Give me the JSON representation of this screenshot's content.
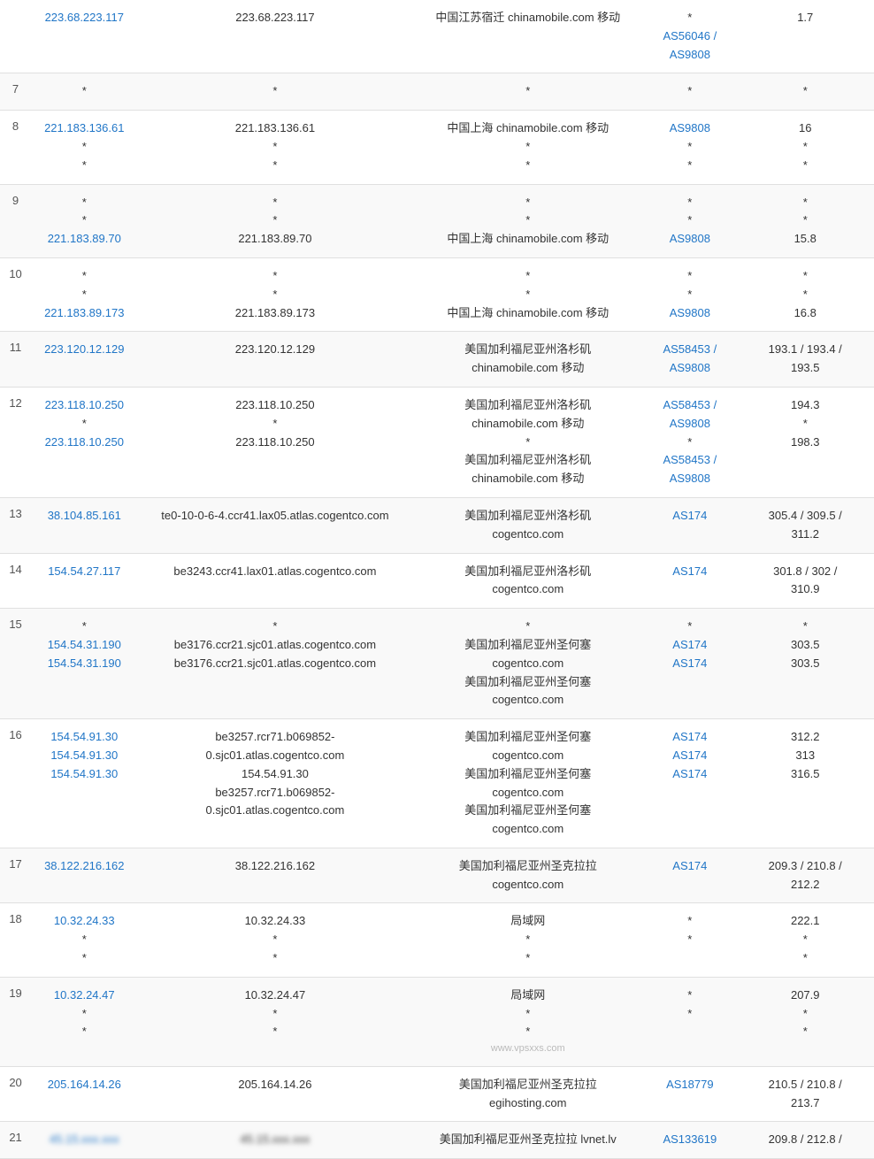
{
  "colors": {
    "link": "#2176c7",
    "text": "#333",
    "border": "#e0e0e0",
    "altrow": "#f9f9f9"
  },
  "rows": [
    {
      "hop": "",
      "ip": [
        {
          "t": "223.68.223.117",
          "link": true
        }
      ],
      "host": [
        {
          "t": "223.68.223.117"
        }
      ],
      "loc": [
        {
          "t": "中国江苏宿迁 chinamobile.com 移动"
        }
      ],
      "as": [
        {
          "t": "*"
        },
        {
          "t": "AS56046 /",
          "link": true
        },
        {
          "t": "AS9808",
          "link": true
        }
      ],
      "ms": [
        {
          "t": "1.7"
        }
      ]
    },
    {
      "hop": "7",
      "ip": [
        {
          "t": "*"
        }
      ],
      "host": [
        {
          "t": "*"
        }
      ],
      "loc": [
        {
          "t": "*"
        }
      ],
      "as": [
        {
          "t": "*"
        }
      ],
      "ms": [
        {
          "t": "*"
        }
      ]
    },
    {
      "hop": "8",
      "ip": [
        {
          "t": "221.183.136.61",
          "link": true
        },
        {
          "t": "*"
        },
        {
          "t": "*"
        }
      ],
      "host": [
        {
          "t": "221.183.136.61"
        },
        {
          "t": "*"
        },
        {
          "t": "*"
        }
      ],
      "loc": [
        {
          "t": "中国上海 chinamobile.com 移动"
        },
        {
          "t": "*"
        },
        {
          "t": "*"
        }
      ],
      "as": [
        {
          "t": "AS9808",
          "link": true
        },
        {
          "t": "*"
        },
        {
          "t": "*"
        }
      ],
      "ms": [
        {
          "t": "16"
        },
        {
          "t": "*"
        },
        {
          "t": "*"
        }
      ]
    },
    {
      "hop": "9",
      "ip": [
        {
          "t": "*"
        },
        {
          "t": "*"
        },
        {
          "t": "221.183.89.70",
          "link": true
        }
      ],
      "host": [
        {
          "t": "*"
        },
        {
          "t": "*"
        },
        {
          "t": "221.183.89.70"
        }
      ],
      "loc": [
        {
          "t": "*"
        },
        {
          "t": "*"
        },
        {
          "t": "中国上海 chinamobile.com 移动"
        }
      ],
      "as": [
        {
          "t": "*"
        },
        {
          "t": "*"
        },
        {
          "t": "AS9808",
          "link": true
        }
      ],
      "ms": [
        {
          "t": "*"
        },
        {
          "t": "*"
        },
        {
          "t": "15.8"
        }
      ]
    },
    {
      "hop": "10",
      "ip": [
        {
          "t": "*"
        },
        {
          "t": "*"
        },
        {
          "t": "221.183.89.173",
          "link": true
        }
      ],
      "host": [
        {
          "t": "*"
        },
        {
          "t": "*"
        },
        {
          "t": "221.183.89.173"
        }
      ],
      "loc": [
        {
          "t": "*"
        },
        {
          "t": "*"
        },
        {
          "t": "中国上海 chinamobile.com 移动"
        }
      ],
      "as": [
        {
          "t": "*"
        },
        {
          "t": "*"
        },
        {
          "t": "AS9808",
          "link": true
        }
      ],
      "ms": [
        {
          "t": "*"
        },
        {
          "t": "*"
        },
        {
          "t": "16.8"
        }
      ]
    },
    {
      "hop": "11",
      "ip": [
        {
          "t": "223.120.12.129",
          "link": true
        }
      ],
      "host": [
        {
          "t": "223.120.12.129"
        }
      ],
      "loc": [
        {
          "t": "美国加利福尼亚州洛杉矶"
        },
        {
          "t": "chinamobile.com 移动"
        }
      ],
      "as": [
        {
          "t": "AS58453 /",
          "link": true
        },
        {
          "t": "AS9808",
          "link": true
        }
      ],
      "ms": [
        {
          "t": "193.1 / 193.4 /"
        },
        {
          "t": "193.5"
        }
      ]
    },
    {
      "hop": "12",
      "ip": [
        {
          "t": "223.118.10.250",
          "link": true
        },
        {
          "t": "*"
        },
        {
          "t": "223.118.10.250",
          "link": true
        }
      ],
      "host": [
        {
          "t": "223.118.10.250"
        },
        {
          "t": "*"
        },
        {
          "t": "223.118.10.250"
        }
      ],
      "loc": [
        {
          "t": "美国加利福尼亚州洛杉矶"
        },
        {
          "t": "chinamobile.com 移动"
        },
        {
          "t": "*"
        },
        {
          "t": "美国加利福尼亚州洛杉矶"
        },
        {
          "t": "chinamobile.com 移动"
        }
      ],
      "as": [
        {
          "t": "AS58453 /",
          "link": true
        },
        {
          "t": "AS9808",
          "link": true
        },
        {
          "t": "*"
        },
        {
          "t": "AS58453 /",
          "link": true
        },
        {
          "t": "AS9808",
          "link": true
        }
      ],
      "ms": [
        {
          "t": "194.3"
        },
        {
          "t": "*"
        },
        {
          "t": "198.3"
        }
      ]
    },
    {
      "hop": "13",
      "ip": [
        {
          "t": "38.104.85.161",
          "link": true
        }
      ],
      "host": [
        {
          "t": "te0-10-0-6-4.ccr41.lax05.atlas.cogentco.com"
        }
      ],
      "loc": [
        {
          "t": "美国加利福尼亚州洛杉矶"
        },
        {
          "t": "cogentco.com"
        }
      ],
      "as": [
        {
          "t": "AS174",
          "link": true
        }
      ],
      "ms": [
        {
          "t": "305.4 / 309.5 /"
        },
        {
          "t": "311.2"
        }
      ]
    },
    {
      "hop": "14",
      "ip": [
        {
          "t": "154.54.27.117",
          "link": true
        }
      ],
      "host": [
        {
          "t": "be3243.ccr41.lax01.atlas.cogentco.com"
        }
      ],
      "loc": [
        {
          "t": "美国加利福尼亚州洛杉矶"
        },
        {
          "t": "cogentco.com"
        }
      ],
      "as": [
        {
          "t": "AS174",
          "link": true
        }
      ],
      "ms": [
        {
          "t": "301.8 / 302 /"
        },
        {
          "t": "310.9"
        }
      ]
    },
    {
      "hop": "15",
      "ip": [
        {
          "t": "*"
        },
        {
          "t": "154.54.31.190",
          "link": true
        },
        {
          "t": "154.54.31.190",
          "link": true
        }
      ],
      "host": [
        {
          "t": "*"
        },
        {
          "t": "be3176.ccr21.sjc01.atlas.cogentco.com"
        },
        {
          "t": "be3176.ccr21.sjc01.atlas.cogentco.com"
        }
      ],
      "loc": [
        {
          "t": "*"
        },
        {
          "t": "美国加利福尼亚州圣何塞"
        },
        {
          "t": "cogentco.com"
        },
        {
          "t": "美国加利福尼亚州圣何塞"
        },
        {
          "t": "cogentco.com"
        }
      ],
      "as": [
        {
          "t": "*"
        },
        {
          "t": "AS174",
          "link": true
        },
        {
          "t": "AS174",
          "link": true
        }
      ],
      "ms": [
        {
          "t": "*"
        },
        {
          "t": "303.5"
        },
        {
          "t": "303.5"
        }
      ]
    },
    {
      "hop": "16",
      "ip": [
        {
          "t": "154.54.91.30",
          "link": true
        },
        {
          "t": "154.54.91.30",
          "link": true
        },
        {
          "t": "154.54.91.30",
          "link": true
        }
      ],
      "host": [
        {
          "t": "be3257.rcr71.b069852-"
        },
        {
          "t": "0.sjc01.atlas.cogentco.com"
        },
        {
          "t": "154.54.91.30"
        },
        {
          "t": "be3257.rcr71.b069852-"
        },
        {
          "t": "0.sjc01.atlas.cogentco.com"
        }
      ],
      "loc": [
        {
          "t": "美国加利福尼亚州圣何塞"
        },
        {
          "t": "cogentco.com"
        },
        {
          "t": "美国加利福尼亚州圣何塞"
        },
        {
          "t": "cogentco.com"
        },
        {
          "t": "美国加利福尼亚州圣何塞"
        },
        {
          "t": "cogentco.com"
        }
      ],
      "as": [
        {
          "t": "AS174",
          "link": true
        },
        {
          "t": "AS174",
          "link": true
        },
        {
          "t": "AS174",
          "link": true
        }
      ],
      "ms": [
        {
          "t": "312.2"
        },
        {
          "t": "313"
        },
        {
          "t": "316.5"
        }
      ]
    },
    {
      "hop": "17",
      "ip": [
        {
          "t": "38.122.216.162",
          "link": true
        }
      ],
      "host": [
        {
          "t": "38.122.216.162"
        }
      ],
      "loc": [
        {
          "t": "美国加利福尼亚州圣克拉拉"
        },
        {
          "t": "cogentco.com"
        }
      ],
      "as": [
        {
          "t": "AS174",
          "link": true
        }
      ],
      "ms": [
        {
          "t": "209.3 / 210.8 /"
        },
        {
          "t": "212.2"
        }
      ]
    },
    {
      "hop": "18",
      "ip": [
        {
          "t": "10.32.24.33",
          "link": true
        },
        {
          "t": "*"
        },
        {
          "t": "*"
        }
      ],
      "host": [
        {
          "t": "10.32.24.33"
        },
        {
          "t": "*"
        },
        {
          "t": "*"
        }
      ],
      "loc": [
        {
          "t": "局域网"
        },
        {
          "t": "*"
        },
        {
          "t": "*"
        }
      ],
      "as": [
        {
          "t": ""
        },
        {
          "t": "*"
        },
        {
          "t": "*"
        }
      ],
      "ms": [
        {
          "t": "222.1"
        },
        {
          "t": "*"
        },
        {
          "t": "*"
        }
      ]
    },
    {
      "hop": "19",
      "ip": [
        {
          "t": "10.32.24.47",
          "link": true
        },
        {
          "t": "*"
        },
        {
          "t": "*"
        }
      ],
      "host": [
        {
          "t": "10.32.24.47"
        },
        {
          "t": "*"
        },
        {
          "t": "*"
        }
      ],
      "loc": [
        {
          "t": "局域网"
        },
        {
          "t": "*"
        },
        {
          "t": "*"
        },
        {
          "t": "www.vpsxxs.com",
          "watermark": true
        }
      ],
      "as": [
        {
          "t": ""
        },
        {
          "t": "*"
        },
        {
          "t": "*"
        }
      ],
      "ms": [
        {
          "t": "207.9"
        },
        {
          "t": "*"
        },
        {
          "t": "*"
        }
      ]
    },
    {
      "hop": "20",
      "ip": [
        {
          "t": "205.164.14.26",
          "link": true
        }
      ],
      "host": [
        {
          "t": "205.164.14.26"
        }
      ],
      "loc": [
        {
          "t": "美国加利福尼亚州圣克拉拉"
        },
        {
          "t": "egihosting.com"
        }
      ],
      "as": [
        {
          "t": "AS18779",
          "link": true
        }
      ],
      "ms": [
        {
          "t": "210.5 / 210.8 /"
        },
        {
          "t": "213.7"
        }
      ]
    },
    {
      "hop": "21",
      "ip": [
        {
          "t": "45.15.xxx.xxx",
          "link": true,
          "blur": true
        }
      ],
      "host": [
        {
          "t": "45.15.xxx.xxx",
          "blur": true
        }
      ],
      "loc": [
        {
          "t": "美国加利福尼亚州圣克拉拉 lvnet.lv"
        }
      ],
      "as": [
        {
          "t": "AS133619",
          "link": true
        }
      ],
      "ms": [
        {
          "t": "209.8 / 212.8 /"
        }
      ]
    }
  ]
}
